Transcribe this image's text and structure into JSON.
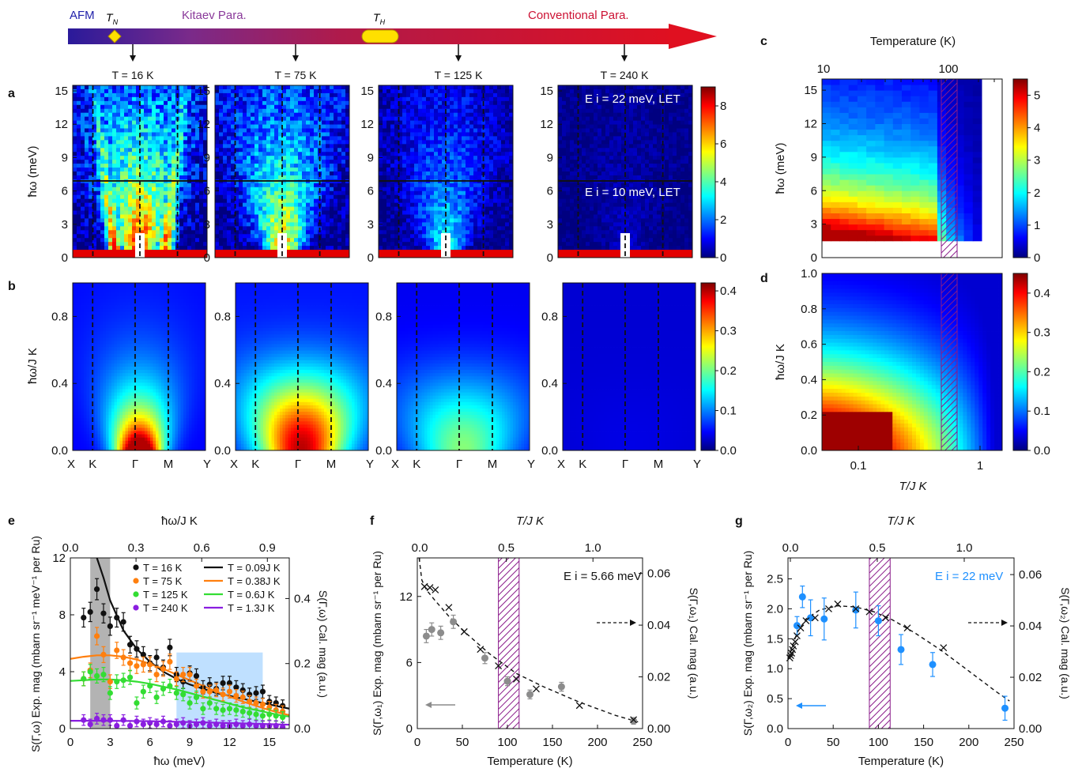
{
  "colors": {
    "afm": "#2222aa",
    "kitaev": "#8a3a9a",
    "conventional": "#cc1133",
    "black": "#111111",
    "orange": "#ff7f0e",
    "green": "#33dd33",
    "purple": "#8a1ee0",
    "gray": "#8c8c8c",
    "blue": "#1e90ff",
    "hatch": "#8a1a8a",
    "shade_gray": "#b3b3b3",
    "shade_blue": "#bfe0ff"
  },
  "arrow": {
    "regions": [
      "AFM",
      "Kitaev Para.",
      "Conventional Para."
    ],
    "tn_label": "T",
    "tn_sub": "N",
    "th_label": "T",
    "th_sub": "H",
    "arrow_marks": [
      "T = 16 K",
      "T = 75 K",
      "T = 125 K",
      "T = 240 K"
    ]
  },
  "panel_letters": [
    "a",
    "b",
    "c",
    "d",
    "e",
    "f",
    "g"
  ],
  "chart_data": [
    {
      "id": "a",
      "type": "heatmap",
      "panel_titles": [
        "T = 16 K",
        "T = 75 K",
        "T = 125 K",
        "T = 240 K"
      ],
      "ylabel": "ħω (meV)",
      "yticks": [
        "0",
        "3",
        "6",
        "9",
        "12",
        "15"
      ],
      "ylim": [
        0,
        15.5
      ],
      "annotations": [
        "E i = 22 meV, LET",
        "E i = 10 meV, LET"
      ],
      "colorbar": {
        "ticks": [
          "0",
          "2",
          "4",
          "6",
          "8"
        ],
        "range": [
          0,
          9
        ]
      },
      "intensity_scale": [
        1.0,
        0.8,
        0.45,
        0.08
      ]
    },
    {
      "id": "b",
      "type": "heatmap",
      "xlabel_ticks": [
        "X",
        "K",
        "Γ",
        "M",
        "Y"
      ],
      "ylabel": "ħω/J K",
      "yticks": [
        "0.0",
        "0.4",
        "0.8"
      ],
      "ylim": [
        0,
        1.0
      ],
      "colorbar": {
        "ticks": [
          "0.0",
          "0.1",
          "0.2",
          "0.3",
          "0.4"
        ],
        "range": [
          0,
          0.42
        ]
      }
    },
    {
      "id": "c",
      "type": "heatmap",
      "xlabel_top": "Temperature (K)",
      "xticks_top": [
        "10",
        "100"
      ],
      "ylabel": "ħω (meV)",
      "yticks": [
        "0",
        "3",
        "6",
        "9",
        "12",
        "15"
      ],
      "colorbar": {
        "ticks": [
          "0",
          "1",
          "2",
          "3",
          "4",
          "5"
        ],
        "range": [
          0,
          5.5
        ]
      }
    },
    {
      "id": "d",
      "type": "heatmap",
      "xlabel": "T/J K",
      "xticks": [
        "0.1",
        "1"
      ],
      "ylabel": "ħω/J K",
      "yticks": [
        "0.0",
        "0.2",
        "0.4",
        "0.6",
        "0.8",
        "1.0"
      ],
      "colorbar": {
        "ticks": [
          "0.0",
          "0.1",
          "0.2",
          "0.3",
          "0.4"
        ],
        "range": [
          0,
          0.45
        ]
      }
    },
    {
      "id": "e",
      "type": "scatter",
      "xlabel": "ħω (meV)",
      "xlabel_top": "ħω/J K",
      "ylabel": "S(Γ,ω) Exp. mag (mbarn sr⁻¹ meV⁻¹ per Ru)",
      "ylabel_right": "S(Γ,ω) Cal. mag (a.u.)",
      "xlim": [
        0,
        16.5
      ],
      "ylim": [
        0,
        12
      ],
      "xticks": [
        "0",
        "3",
        "6",
        "9",
        "12",
        "15"
      ],
      "xticks_top": [
        "0.0",
        "0.3",
        "0.6",
        "0.9"
      ],
      "yticks": [
        "0",
        "4",
        "8",
        "12"
      ],
      "yticks_right": [
        "0.0",
        "0.2",
        "0.4"
      ],
      "legend_markers": [
        "T = 16 K",
        "T = 75 K",
        "T = 125 K",
        "T = 240 K"
      ],
      "legend_lines": [
        "T = 0.09J K",
        "T = 0.38J K",
        "T = 0.6J K",
        "T = 1.3J K"
      ],
      "shaded_regions": [
        [
          1.5,
          3.0
        ],
        [
          8.0,
          14.5
        ]
      ],
      "series": [
        {
          "name": "T = 16 K",
          "color": "#111111",
          "x": [
            1,
            1.5,
            2,
            2.5,
            3,
            3.5,
            4,
            4.5,
            5,
            5.5,
            6,
            6.5,
            7,
            7.5,
            8,
            8.5,
            9,
            9.5,
            10,
            10.5,
            11,
            11.5,
            12,
            12.5,
            13,
            13.5,
            14,
            14.5,
            15,
            15.5,
            16
          ],
          "y": [
            7.8,
            8.2,
            9.8,
            8.1,
            7.2,
            7.8,
            7.5,
            5.9,
            5.6,
            5.2,
            4.6,
            5.0,
            4.3,
            5.7,
            3.8,
            3.3,
            3.9,
            3.7,
            2.9,
            3.1,
            2.8,
            3.2,
            3.2,
            2.9,
            2.7,
            2.4,
            2.5,
            2.6,
            1.9,
            1.8,
            1.6
          ]
        },
        {
          "name": "T = 75 K",
          "color": "#ff7f0e",
          "x": [
            1,
            1.5,
            2,
            2.5,
            3,
            3.5,
            4,
            4.5,
            5,
            5.5,
            6,
            6.5,
            7,
            7.5,
            8,
            8.5,
            9,
            9.5,
            10,
            10.5,
            11,
            11.5,
            12,
            12.5,
            13,
            13.5,
            14,
            14.5,
            15,
            15.5,
            16
          ],
          "y": [
            3.5,
            4.1,
            6.5,
            5.2,
            3.3,
            5.5,
            5.0,
            4.6,
            4.4,
            4.5,
            4.5,
            3.8,
            4.2,
            4.7,
            3.5,
            3.8,
            3.8,
            3.0,
            2.6,
            2.6,
            2.7,
            2.4,
            2.6,
            2.3,
            2.2,
            1.9,
            1.8,
            1.7,
            1.5,
            1.3,
            1.2
          ]
        },
        {
          "name": "T = 125 K",
          "color": "#33dd33",
          "x": [
            1,
            1.5,
            2,
            2.5,
            3,
            3.5,
            4,
            4.5,
            5,
            5.5,
            6,
            6.5,
            7,
            7.5,
            8,
            8.5,
            9,
            9.5,
            10,
            10.5,
            11,
            11.5,
            12,
            12.5,
            13,
            13.5,
            14,
            14.5,
            15,
            15.5,
            16
          ],
          "y": [
            3.5,
            4.0,
            3.7,
            3.8,
            2.5,
            3.3,
            3.4,
            3.6,
            1.8,
            2.6,
            3.0,
            2.2,
            2.8,
            3.0,
            2.5,
            2.4,
            1.8,
            2.2,
            1.4,
            1.8,
            1.4,
            1.3,
            1.4,
            1.3,
            1.2,
            1.1,
            1.0,
            0.9,
            1.0,
            0.9,
            0.8
          ]
        },
        {
          "name": "T = 240 K",
          "color": "#8a1ee0",
          "x": [
            1,
            1.5,
            2,
            2.5,
            3,
            3.5,
            4,
            4.5,
            5,
            5.5,
            6,
            6.5,
            7,
            7.5,
            8,
            8.5,
            9,
            9.5,
            10,
            10.5,
            11,
            11.5,
            12,
            12.5,
            13,
            13.5,
            14,
            14.5,
            15,
            15.5,
            16
          ],
          "y": [
            0.6,
            0.3,
            0.7,
            0.6,
            0.6,
            0.2,
            0.6,
            0.2,
            0.5,
            0.3,
            0.4,
            0.3,
            0.5,
            0.2,
            0.3,
            0.4,
            0.2,
            0.3,
            0.4,
            0.2,
            0.3,
            0.2,
            0.2,
            0.3,
            0.2,
            0.3,
            0.2,
            0.2,
            0.2,
            0.2,
            0.1
          ]
        }
      ],
      "curves": [
        {
          "name": "T = 0.09J K",
          "color": "#111111",
          "x": [
            2,
            2.5,
            3,
            4,
            5,
            6,
            7,
            8,
            9,
            10,
            11,
            12,
            13,
            14,
            15,
            16,
            16.5
          ],
          "y": [
            12,
            10.6,
            9.0,
            6.9,
            5.6,
            4.7,
            4.0,
            3.5,
            3.1,
            2.8,
            2.5,
            2.3,
            2.1,
            1.9,
            1.7,
            1.5,
            1.4
          ]
        },
        {
          "name": "T = 0.38J K",
          "color": "#ff7f0e",
          "x": [
            0,
            1,
            2,
            3,
            4,
            5,
            6,
            7,
            8,
            9,
            10,
            11,
            12,
            13,
            14,
            15,
            16,
            16.5
          ],
          "y": [
            4.9,
            5.05,
            5.15,
            5.15,
            5.05,
            4.85,
            4.55,
            4.2,
            3.8,
            3.4,
            3.0,
            2.6,
            2.25,
            1.9,
            1.6,
            1.3,
            1.05,
            0.95
          ]
        },
        {
          "name": "T = 0.6J K",
          "color": "#33dd33",
          "x": [
            0,
            1,
            2,
            3,
            4,
            5,
            6,
            7,
            8,
            9,
            10,
            11,
            12,
            13,
            14,
            15,
            16,
            16.5
          ],
          "y": [
            3.35,
            3.4,
            3.45,
            3.45,
            3.4,
            3.3,
            3.15,
            2.95,
            2.75,
            2.5,
            2.25,
            2.0,
            1.75,
            1.5,
            1.3,
            1.1,
            0.9,
            0.85
          ]
        },
        {
          "name": "T = 1.3J K",
          "color": "#8a1ee0",
          "x": [
            0,
            2,
            4,
            6,
            8,
            10,
            12,
            14,
            16,
            16.5
          ],
          "y": [
            0.55,
            0.55,
            0.54,
            0.52,
            0.48,
            0.44,
            0.39,
            0.34,
            0.29,
            0.27
          ]
        }
      ]
    },
    {
      "id": "f",
      "type": "scatter",
      "xlabel": "Temperature (K)",
      "xlabel_top": "T/J K",
      "ylabel": "S(Γ,ω₁) Exp. mag (mbarn sr⁻¹ per Ru)",
      "ylabel_right": "S(Γ,ω₁) Cal. mag (a.u.)",
      "annotation": "E i = 5.66 meV",
      "xlim": [
        0,
        250
      ],
      "ylim": [
        0,
        15.5
      ],
      "xticks": [
        "0",
        "50",
        "100",
        "150",
        "200",
        "250"
      ],
      "xticks_top": [
        "0.0",
        "0.5",
        "1.0"
      ],
      "yticks": [
        "0",
        "6",
        "12"
      ],
      "yticks_right": [
        "0.00",
        "0.02",
        "0.04",
        "0.06"
      ],
      "hatch_band": [
        90,
        113
      ],
      "series": [
        {
          "name": "Exp.",
          "color": "#8c8c8c",
          "x": [
            10,
            16,
            26,
            40,
            75,
            100,
            125,
            160,
            240
          ],
          "y": [
            8.4,
            9.0,
            8.7,
            9.7,
            6.4,
            4.3,
            3.1,
            3.8,
            0.7
          ],
          "err": [
            0.6,
            0.6,
            0.6,
            0.6,
            0.5,
            0.4,
            0.4,
            0.4,
            0.3
          ]
        },
        {
          "name": "Cal.",
          "color": "#111111",
          "x": [
            8,
            14,
            20,
            35,
            52,
            70,
            90,
            110,
            132,
            180,
            240
          ],
          "y": [
            12.9,
            12.8,
            12.6,
            11.0,
            8.8,
            7.2,
            5.7,
            4.5,
            3.6,
            2.1,
            0.8
          ]
        }
      ],
      "curve": {
        "x": [
          2,
          5,
          10,
          20,
          35,
          55,
          80,
          110,
          140,
          180,
          220,
          245
        ],
        "y": [
          15.5,
          13.5,
          12.6,
          11.6,
          10.2,
          8.6,
          6.8,
          5.0,
          3.8,
          2.4,
          1.2,
          0.6
        ]
      }
    },
    {
      "id": "g",
      "type": "scatter",
      "xlabel": "Temperature (K)",
      "xlabel_top": "T/J K",
      "ylabel": "S(Γ,ω₂) Exp. mag (mbarn sr⁻¹ per Ru)",
      "ylabel_right": "S(Γ,ω₂) Cal. mag (a.u.)",
      "annotation": "E i = 22 meV",
      "xlim": [
        0,
        250
      ],
      "ylim": [
        0,
        2.85
      ],
      "xticks": [
        "0",
        "50",
        "100",
        "150",
        "200",
        "250"
      ],
      "xticks_top": [
        "0.0",
        "0.5",
        "1.0"
      ],
      "yticks": [
        "0.0",
        "0.5",
        "1.0",
        "1.5",
        "2.0",
        "2.5"
      ],
      "yticks_right": [
        "0.00",
        "0.02",
        "0.04",
        "0.06"
      ],
      "hatch_band": [
        90,
        113
      ],
      "series": [
        {
          "name": "Exp.",
          "color": "#1e90ff",
          "x": [
            10,
            16,
            25,
            40,
            75,
            100,
            125,
            160,
            240
          ],
          "y": [
            1.72,
            2.2,
            1.85,
            1.83,
            1.98,
            1.8,
            1.32,
            1.07,
            0.34
          ],
          "err": [
            0.15,
            0.18,
            0.3,
            0.35,
            0.3,
            0.25,
            0.25,
            0.2,
            0.2
          ]
        },
        {
          "name": "Cal.",
          "color": "#111111",
          "x": [
            2,
            3,
            4,
            5,
            6,
            8,
            10,
            14,
            20,
            30,
            45,
            55,
            75,
            90,
            108,
            132,
            172
          ],
          "y": [
            1.18,
            1.22,
            1.26,
            1.32,
            1.38,
            1.45,
            1.55,
            1.68,
            1.8,
            1.85,
            2.0,
            2.08,
            2.0,
            1.95,
            1.85,
            1.68,
            1.35
          ]
        }
      ],
      "curve": {
        "x": [
          0,
          5,
          10,
          20,
          35,
          55,
          75,
          95,
          115,
          140,
          170,
          200,
          230,
          245
        ],
        "y": [
          1.15,
          1.38,
          1.6,
          1.83,
          1.98,
          2.05,
          2.03,
          1.95,
          1.82,
          1.6,
          1.3,
          0.96,
          0.62,
          0.46
        ]
      }
    }
  ]
}
